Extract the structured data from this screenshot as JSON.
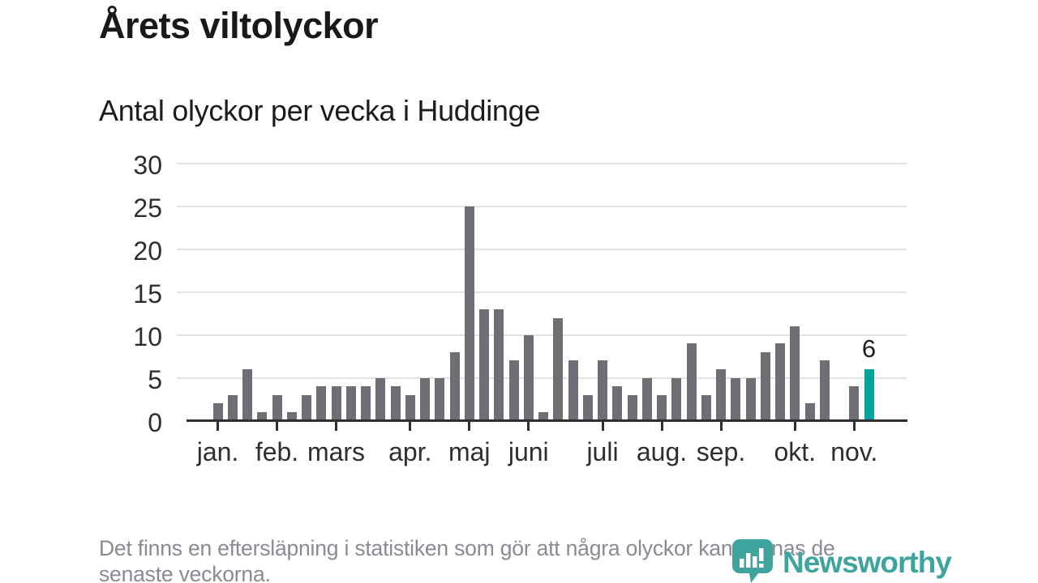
{
  "title": "Årets viltolyckor",
  "subtitle": "Antal olyckor per vecka i Huddinge",
  "footer": {
    "line1": "Det finns en eftersläpning i statistiken som gör att några olyckor kan saknas de",
    "line2": "senaste veckorna."
  },
  "logo": {
    "text": "Newsworthy"
  },
  "colors": {
    "bar": "#6f6e74",
    "highlight": "#02a29b",
    "axis": "#2e2e2e",
    "grid": "#e2e2e3",
    "logo_teal": "#3fa49e",
    "title_text": "#191919",
    "footnote_text": "#8a8a92"
  },
  "chart_data": {
    "type": "bar",
    "title": "Årets viltolyckor",
    "subtitle": "Antal olyckor per vecka i Huddinge",
    "xlabel": "",
    "ylabel": "",
    "x_unit": "vecka (week)",
    "ylim": [
      0,
      30
    ],
    "yticks": [
      0,
      5,
      10,
      15,
      20,
      25,
      30
    ],
    "grid": true,
    "values": [
      2,
      3,
      6,
      1,
      3,
      1,
      3,
      4,
      4,
      4,
      4,
      5,
      4,
      3,
      5,
      5,
      8,
      25,
      13,
      13,
      7,
      10,
      1,
      12,
      7,
      3,
      7,
      4,
      3,
      5,
      3,
      5,
      9,
      3,
      6,
      5,
      5,
      8,
      9,
      11,
      2,
      7,
      0,
      4,
      6
    ],
    "highlight_index": 44,
    "highlight_label": "6",
    "month_ticks": [
      {
        "index": 0,
        "label": "jan."
      },
      {
        "index": 4,
        "label": "feb."
      },
      {
        "index": 8,
        "label": "mars"
      },
      {
        "index": 13,
        "label": "apr."
      },
      {
        "index": 17,
        "label": "maj"
      },
      {
        "index": 21,
        "label": "juni"
      },
      {
        "index": 26,
        "label": "juli"
      },
      {
        "index": 30,
        "label": "aug."
      },
      {
        "index": 34,
        "label": "sep."
      },
      {
        "index": 39,
        "label": "okt."
      },
      {
        "index": 43,
        "label": "nov."
      }
    ]
  }
}
